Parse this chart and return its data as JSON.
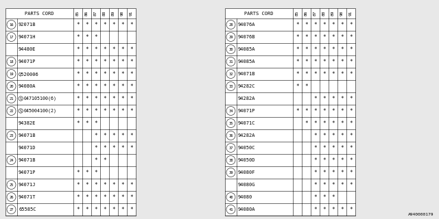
{
  "footer": "A940000179",
  "bg_color": "#e8e8e8",
  "text_color": "#000000",
  "col_headers": [
    "85",
    "86",
    "87",
    "88",
    "89",
    "90",
    "91"
  ],
  "left_table": {
    "rows": [
      {
        "num": "16",
        "part": "92071B",
        "stars": [
          1,
          1,
          1,
          1,
          1,
          1,
          1
        ]
      },
      {
        "num": "17",
        "part": "94071H",
        "stars": [
          1,
          1,
          1,
          0,
          0,
          0,
          0
        ]
      },
      {
        "num": "",
        "part": "94480E",
        "stars": [
          1,
          1,
          1,
          1,
          1,
          1,
          1
        ]
      },
      {
        "num": "18",
        "part": "94071P",
        "stars": [
          1,
          1,
          1,
          1,
          1,
          1,
          1
        ]
      },
      {
        "num": "19",
        "part": "Q520006",
        "stars": [
          1,
          1,
          1,
          1,
          1,
          1,
          1
        ]
      },
      {
        "num": "20",
        "part": "94080A",
        "stars": [
          1,
          1,
          1,
          1,
          1,
          1,
          1
        ]
      },
      {
        "num": "21",
        "part": "S047105100(6)",
        "stars": [
          1,
          1,
          1,
          1,
          1,
          1,
          1
        ]
      },
      {
        "num": "22",
        "part": "S045004100(2)",
        "stars": [
          1,
          1,
          1,
          1,
          1,
          1,
          1
        ]
      },
      {
        "num": "",
        "part": "94382E",
        "stars": [
          1,
          1,
          1,
          0,
          0,
          0,
          0
        ]
      },
      {
        "num": "23",
        "part": "94071B",
        "stars": [
          0,
          0,
          1,
          1,
          1,
          1,
          1
        ]
      },
      {
        "num": "",
        "part": "94071D",
        "stars": [
          0,
          0,
          1,
          1,
          1,
          1,
          1
        ]
      },
      {
        "num": "24",
        "part": "94071B",
        "stars": [
          0,
          0,
          1,
          1,
          0,
          0,
          0
        ]
      },
      {
        "num": "",
        "part": "94071P",
        "stars": [
          1,
          1,
          1,
          0,
          0,
          0,
          0
        ]
      },
      {
        "num": "25",
        "part": "94071J",
        "stars": [
          1,
          1,
          1,
          1,
          1,
          1,
          1
        ]
      },
      {
        "num": "26",
        "part": "94071T",
        "stars": [
          1,
          1,
          1,
          1,
          1,
          1,
          1
        ]
      },
      {
        "num": "27",
        "part": "65585C",
        "stars": [
          1,
          1,
          1,
          1,
          1,
          1,
          1
        ]
      }
    ]
  },
  "right_table": {
    "rows": [
      {
        "num": "28",
        "part": "94076A",
        "stars": [
          1,
          1,
          1,
          1,
          1,
          1,
          1
        ]
      },
      {
        "num": "29",
        "part": "94076B",
        "stars": [
          1,
          1,
          1,
          1,
          1,
          1,
          1
        ]
      },
      {
        "num": "30",
        "part": "94085A",
        "stars": [
          1,
          1,
          1,
          1,
          1,
          1,
          1
        ]
      },
      {
        "num": "31",
        "part": "94085A",
        "stars": [
          1,
          1,
          1,
          1,
          1,
          1,
          1
        ]
      },
      {
        "num": "32",
        "part": "94071B",
        "stars": [
          1,
          1,
          1,
          1,
          1,
          1,
          1
        ]
      },
      {
        "num": "33",
        "part": "94282C",
        "stars": [
          1,
          1,
          0,
          0,
          0,
          0,
          0
        ]
      },
      {
        "num": "",
        "part": "94282A",
        "stars": [
          0,
          0,
          1,
          1,
          1,
          1,
          1
        ]
      },
      {
        "num": "34",
        "part": "94071P",
        "stars": [
          1,
          1,
          1,
          1,
          1,
          1,
          1
        ]
      },
      {
        "num": "35",
        "part": "94071C",
        "stars": [
          0,
          1,
          1,
          1,
          1,
          1,
          1
        ]
      },
      {
        "num": "36",
        "part": "94282A",
        "stars": [
          0,
          0,
          1,
          1,
          1,
          1,
          1
        ]
      },
      {
        "num": "37",
        "part": "94050C",
        "stars": [
          0,
          0,
          1,
          1,
          1,
          1,
          1
        ]
      },
      {
        "num": "38",
        "part": "94050D",
        "stars": [
          0,
          0,
          1,
          1,
          1,
          1,
          1
        ]
      },
      {
        "num": "39",
        "part": "94080F",
        "stars": [
          0,
          0,
          1,
          1,
          1,
          1,
          1
        ]
      },
      {
        "num": "",
        "part": "94080G",
        "stars": [
          0,
          0,
          1,
          1,
          1,
          1,
          1
        ]
      },
      {
        "num": "40",
        "part": "94080",
        "stars": [
          0,
          0,
          1,
          1,
          1,
          0,
          0
        ]
      },
      {
        "num": "41",
        "part": "94080A",
        "stars": [
          0,
          0,
          1,
          1,
          1,
          1,
          1
        ]
      }
    ]
  }
}
